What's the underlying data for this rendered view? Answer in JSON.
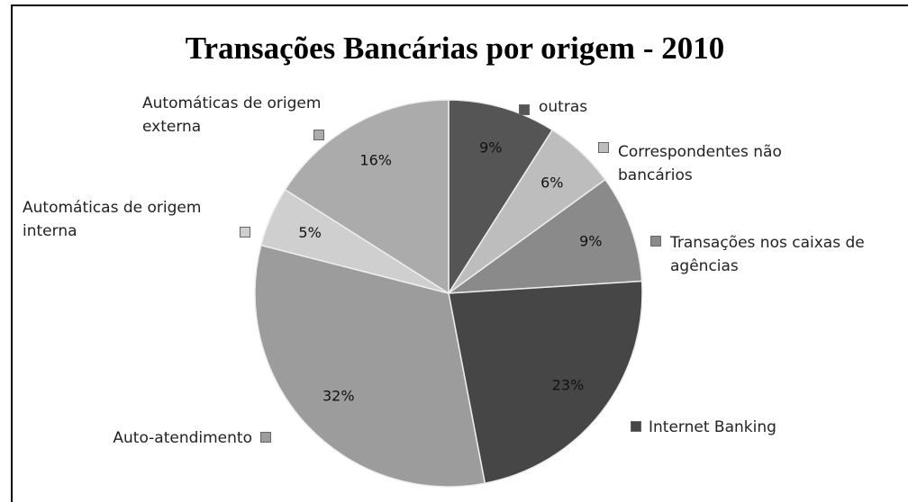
{
  "chart_data": {
    "type": "pie",
    "title": "Transações Bancárias por origem - 2010",
    "categories": [
      "outras",
      "Correspondentes não bancários",
      "Transações nos caixas de agências",
      "Internet Banking",
      "Auto-atendimento",
      "Automáticas de origem interna",
      "Automáticas de origem externa"
    ],
    "values": [
      9,
      6,
      9,
      23,
      32,
      5,
      16
    ],
    "value_labels": [
      "9%",
      "6%",
      "9%",
      "23%",
      "32%",
      "5%",
      "16%"
    ],
    "colors": [
      "#555555",
      "#bdbdbd",
      "#8a8a8a",
      "#464646",
      "#9c9c9c",
      "#cfcfcf",
      "#ababab"
    ]
  }
}
